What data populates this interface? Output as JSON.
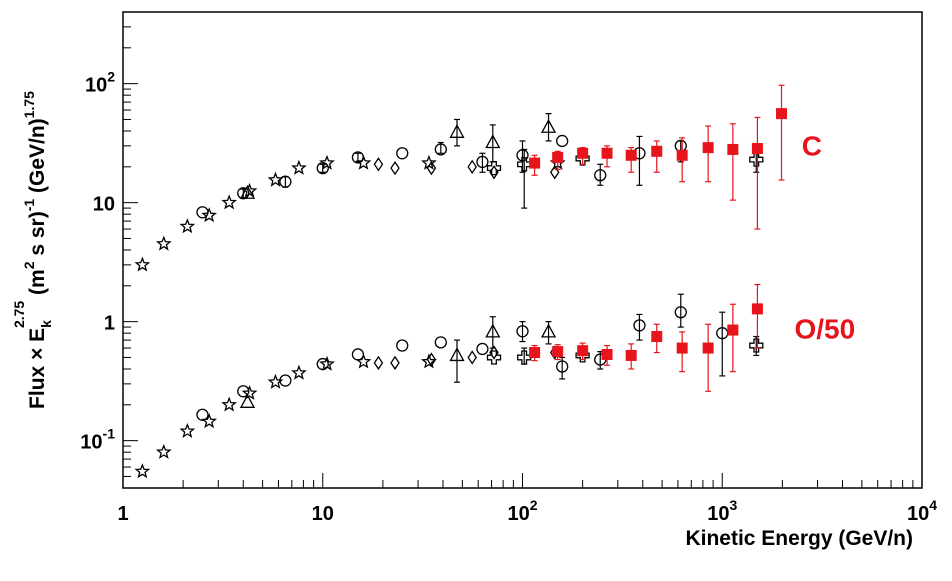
{
  "chart_data": {
    "type": "scatter",
    "title": "",
    "xlabel": "Kinetic Energy (GeV/n)",
    "ylabel": {
      "prefix": "Flux × E",
      "sub": "k",
      "sup": "2.75",
      "mid1": " (m",
      "sup2": "2",
      "mid2": " s sr)",
      "sup3": "-1",
      "mid3": " (GeV/n)",
      "sup4": "1.75"
    },
    "xscale": "log",
    "yscale": "log",
    "xlim": [
      1,
      10000
    ],
    "ylim": [
      0.04,
      400
    ],
    "grid": false,
    "x_ticks": [
      {
        "value": 1,
        "base": "1",
        "exp": ""
      },
      {
        "value": 10,
        "base": "10",
        "exp": ""
      },
      {
        "value": 100,
        "base": "10",
        "exp": "2"
      },
      {
        "value": 1000,
        "base": "10",
        "exp": "3"
      },
      {
        "value": 10000,
        "base": "10",
        "exp": "4"
      }
    ],
    "y_ticks": [
      {
        "value": 0.1,
        "base": "10",
        "exp": "-1"
      },
      {
        "value": 1,
        "base": "1",
        "exp": ""
      },
      {
        "value": 10,
        "base": "10",
        "exp": ""
      },
      {
        "value": 100,
        "base": "10",
        "exp": "2"
      }
    ],
    "annotations": [
      {
        "text": "C",
        "x": 2500,
        "y": 25,
        "color": "#e8141c"
      },
      {
        "text": "O/50",
        "x": 2300,
        "y": 0.72,
        "color": "#e8141c"
      }
    ],
    "series": [
      {
        "marker": "star",
        "color": "#000000",
        "points": [
          {
            "x": 1.25,
            "y": 3.0
          },
          {
            "x": 1.6,
            "y": 4.5
          },
          {
            "x": 2.1,
            "y": 6.3
          },
          {
            "x": 2.7,
            "y": 7.8
          },
          {
            "x": 3.4,
            "y": 10.0
          },
          {
            "x": 4.3,
            "y": 12.5
          },
          {
            "x": 5.8,
            "y": 15.5
          },
          {
            "x": 7.6,
            "y": 19.5
          },
          {
            "x": 10.5,
            "y": 21.5
          },
          {
            "x": 16,
            "y": 21.5
          },
          {
            "x": 34,
            "y": 21.5
          },
          {
            "x": 150,
            "y": 21.5
          },
          {
            "x": 1.25,
            "y": 0.055
          },
          {
            "x": 1.6,
            "y": 0.08
          },
          {
            "x": 2.1,
            "y": 0.12
          },
          {
            "x": 2.7,
            "y": 0.145
          },
          {
            "x": 3.4,
            "y": 0.2
          },
          {
            "x": 4.3,
            "y": 0.25
          },
          {
            "x": 5.8,
            "y": 0.31
          },
          {
            "x": 7.6,
            "y": 0.37
          },
          {
            "x": 10.5,
            "y": 0.44
          },
          {
            "x": 16,
            "y": 0.46
          },
          {
            "x": 34,
            "y": 0.46
          }
        ]
      },
      {
        "marker": "circle",
        "color": "#000000",
        "points": [
          {
            "x": 2.5,
            "y": 8.3
          },
          {
            "x": 4.0,
            "y": 12.0,
            "lo": 11.0,
            "hi": 13.0
          },
          {
            "x": 6.5,
            "y": 15.0,
            "lo": 13.5,
            "hi": 16.5
          },
          {
            "x": 10,
            "y": 19.5,
            "lo": 18.0,
            "hi": 21.0
          },
          {
            "x": 15,
            "y": 24.0,
            "lo": 22.0,
            "hi": 26.0
          },
          {
            "x": 25,
            "y": 26.0
          },
          {
            "x": 39,
            "y": 28.0,
            "lo": 26.0,
            "hi": 32.0
          },
          {
            "x": 63,
            "y": 22.0,
            "lo": 18.0,
            "hi": 26.0
          },
          {
            "x": 100,
            "y": 25.0,
            "lo": 18.0,
            "hi": 33.0
          },
          {
            "x": 158,
            "y": 33.0
          },
          {
            "x": 245,
            "y": 17.0,
            "lo": 14.0,
            "hi": 21.0
          },
          {
            "x": 385,
            "y": 26.0,
            "lo": 14.0,
            "hi": 36.0
          },
          {
            "x": 620,
            "y": 30.0,
            "lo": 22.0,
            "hi": 33.0
          },
          {
            "x": 2.5,
            "y": 0.165
          },
          {
            "x": 4.0,
            "y": 0.26
          },
          {
            "x": 6.5,
            "y": 0.32
          },
          {
            "x": 10,
            "y": 0.44
          },
          {
            "x": 15,
            "y": 0.53
          },
          {
            "x": 25,
            "y": 0.63
          },
          {
            "x": 39,
            "y": 0.67
          },
          {
            "x": 63,
            "y": 0.59
          },
          {
            "x": 100,
            "y": 0.83,
            "lo": 0.68,
            "hi": 1.0
          },
          {
            "x": 158,
            "y": 0.42,
            "lo": 0.33,
            "hi": 0.5
          },
          {
            "x": 245,
            "y": 0.48,
            "lo": 0.4,
            "hi": 0.56
          },
          {
            "x": 385,
            "y": 0.93,
            "lo": 0.7,
            "hi": 1.15
          },
          {
            "x": 620,
            "y": 1.2,
            "lo": 0.9,
            "hi": 1.7
          },
          {
            "x": 1000,
            "y": 0.8,
            "lo": 0.35,
            "hi": 1.2
          }
        ]
      },
      {
        "marker": "triangle",
        "color": "#000000",
        "points": [
          {
            "x": 4.2,
            "y": 12.0
          },
          {
            "x": 47,
            "y": 39.0,
            "lo": 30.0,
            "hi": 50.0
          },
          {
            "x": 71,
            "y": 32.0,
            "lo": 22.0,
            "hi": 45.0
          },
          {
            "x": 135,
            "y": 43.0,
            "lo": 33.0,
            "hi": 56.0
          },
          {
            "x": 4.2,
            "y": 0.21
          },
          {
            "x": 47,
            "y": 0.52,
            "lo": 0.31,
            "hi": 0.7
          },
          {
            "x": 71,
            "y": 0.82,
            "lo": 0.6,
            "hi": 1.1
          },
          {
            "x": 135,
            "y": 0.82,
            "lo": 0.65,
            "hi": 1.0
          }
        ]
      },
      {
        "marker": "diamond",
        "color": "#000000",
        "points": [
          {
            "x": 19,
            "y": 21.0
          },
          {
            "x": 23,
            "y": 19.5
          },
          {
            "x": 35,
            "y": 19.5
          },
          {
            "x": 56,
            "y": 20.0
          },
          {
            "x": 72,
            "y": 18.0
          },
          {
            "x": 145,
            "y": 18.0
          },
          {
            "x": 19,
            "y": 0.45
          },
          {
            "x": 23,
            "y": 0.45
          },
          {
            "x": 35,
            "y": 0.48
          },
          {
            "x": 56,
            "y": 0.5
          },
          {
            "x": 72,
            "y": 0.55
          },
          {
            "x": 145,
            "y": 0.55
          }
        ]
      },
      {
        "marker": "cross",
        "color": "#000000",
        "points": [
          {
            "x": 72,
            "y": 19.5
          },
          {
            "x": 102,
            "y": 21.0,
            "lo": 9.0,
            "hi": 28.0
          },
          {
            "x": 200,
            "y": 23.5
          },
          {
            "x": 1480,
            "y": 23.0,
            "lo": 18.0,
            "hi": 28.0
          },
          {
            "x": 72,
            "y": 0.5
          },
          {
            "x": 102,
            "y": 0.5,
            "lo": 0.44,
            "hi": 0.6
          },
          {
            "x": 200,
            "y": 0.52
          },
          {
            "x": 1480,
            "y": 0.63,
            "lo": 0.52,
            "hi": 0.75
          }
        ]
      },
      {
        "marker": "square",
        "color": "#e8141c",
        "points": [
          {
            "x": 115,
            "y": 21.5,
            "lo": 17.0,
            "hi": 25.0
          },
          {
            "x": 150,
            "y": 24.0,
            "lo": 19.0,
            "hi": 27.0
          },
          {
            "x": 200,
            "y": 26.0,
            "lo": 21.0,
            "hi": 29.0
          },
          {
            "x": 265,
            "y": 26.0,
            "lo": 20.0,
            "hi": 30.0
          },
          {
            "x": 350,
            "y": 25.0,
            "lo": 18.0,
            "hi": 29.0
          },
          {
            "x": 470,
            "y": 27.0,
            "lo": 18.0,
            "hi": 33.0
          },
          {
            "x": 630,
            "y": 25.0,
            "lo": 15.0,
            "hi": 35.0
          },
          {
            "x": 850,
            "y": 29.0,
            "lo": 15.0,
            "hi": 44.0
          },
          {
            "x": 1130,
            "y": 28.0,
            "lo": 10.5,
            "hi": 46.0
          },
          {
            "x": 1500,
            "y": 28.5,
            "lo": 6.0,
            "hi": 52.0
          },
          {
            "x": 1980,
            "y": 56.0,
            "lo": 15.5,
            "hi": 97.0
          },
          {
            "x": 115,
            "y": 0.55,
            "lo": 0.47,
            "hi": 0.63
          },
          {
            "x": 150,
            "y": 0.56,
            "lo": 0.48,
            "hi": 0.64
          },
          {
            "x": 200,
            "y": 0.57,
            "lo": 0.48,
            "hi": 0.66
          },
          {
            "x": 265,
            "y": 0.53,
            "lo": 0.43,
            "hi": 0.63
          },
          {
            "x": 350,
            "y": 0.52,
            "lo": 0.4,
            "hi": 0.65
          },
          {
            "x": 470,
            "y": 0.75,
            "lo": 0.55,
            "hi": 0.95
          },
          {
            "x": 630,
            "y": 0.6,
            "lo": 0.38,
            "hi": 0.82
          },
          {
            "x": 850,
            "y": 0.6,
            "lo": 0.26,
            "hi": 0.95
          },
          {
            "x": 1130,
            "y": 0.85,
            "lo": 0.38,
            "hi": 1.4
          },
          {
            "x": 1500,
            "y": 1.28,
            "lo": 0.6,
            "hi": 2.05
          }
        ]
      }
    ]
  }
}
